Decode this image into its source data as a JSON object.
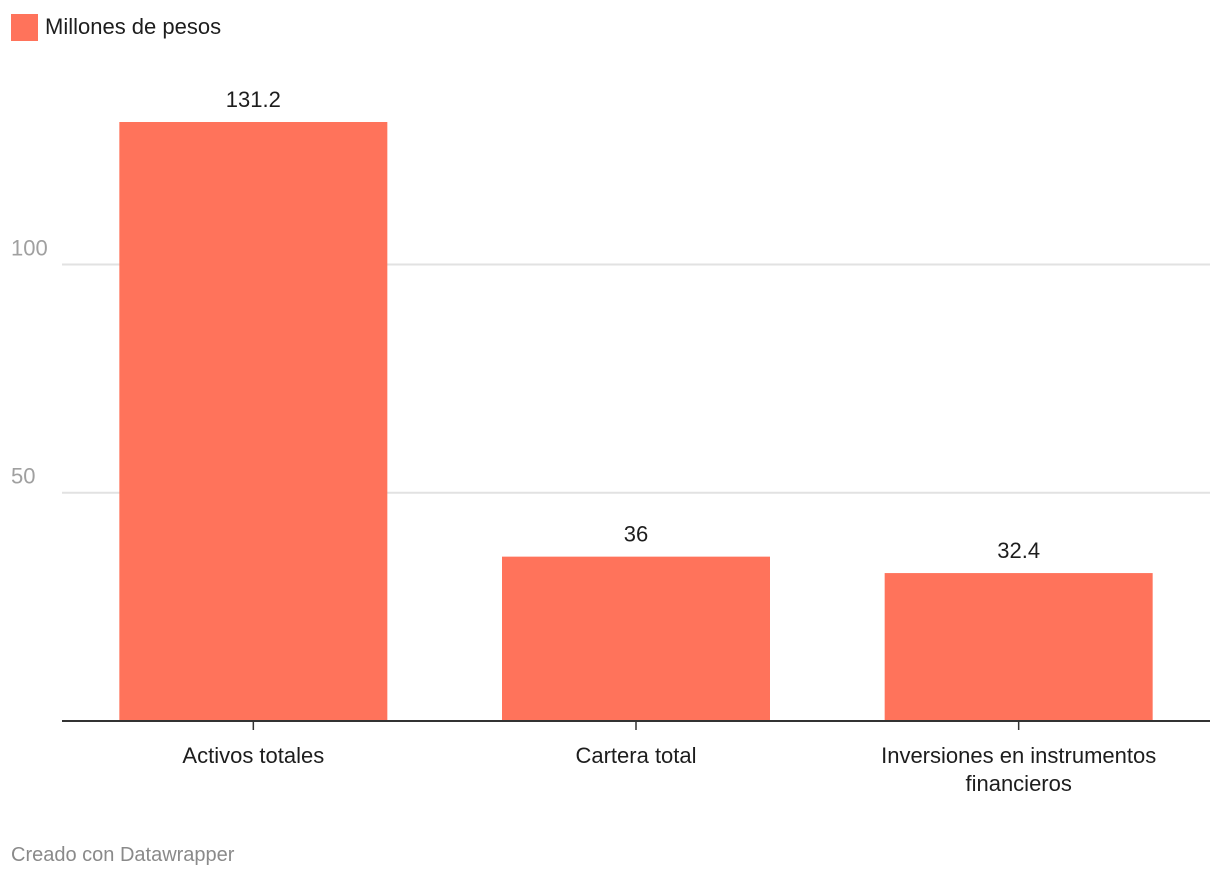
{
  "legend": {
    "label": "Millones de pesos",
    "color": "#ff735b"
  },
  "footer": {
    "credit": "Creado con Datawrapper"
  },
  "chart_data": {
    "type": "bar",
    "categories": [
      "Activos totales",
      "Cartera total",
      "Inversiones en instrumentos financieros"
    ],
    "category_lines": [
      [
        "Activos totales"
      ],
      [
        "Cartera total"
      ],
      [
        "Inversiones en instrumentos",
        "financieros"
      ]
    ],
    "series": [
      {
        "name": "Millones de pesos",
        "values": [
          131.2,
          36,
          32.4
        ],
        "value_labels": [
          "131.2",
          "36",
          "32.4"
        ],
        "color": "#ff735b"
      }
    ],
    "y_ticks": [
      50,
      100
    ],
    "ylim": [
      0,
      131.2
    ],
    "grid": true,
    "legend_position": "top-left",
    "title": "",
    "xlabel": "",
    "ylabel": ""
  }
}
